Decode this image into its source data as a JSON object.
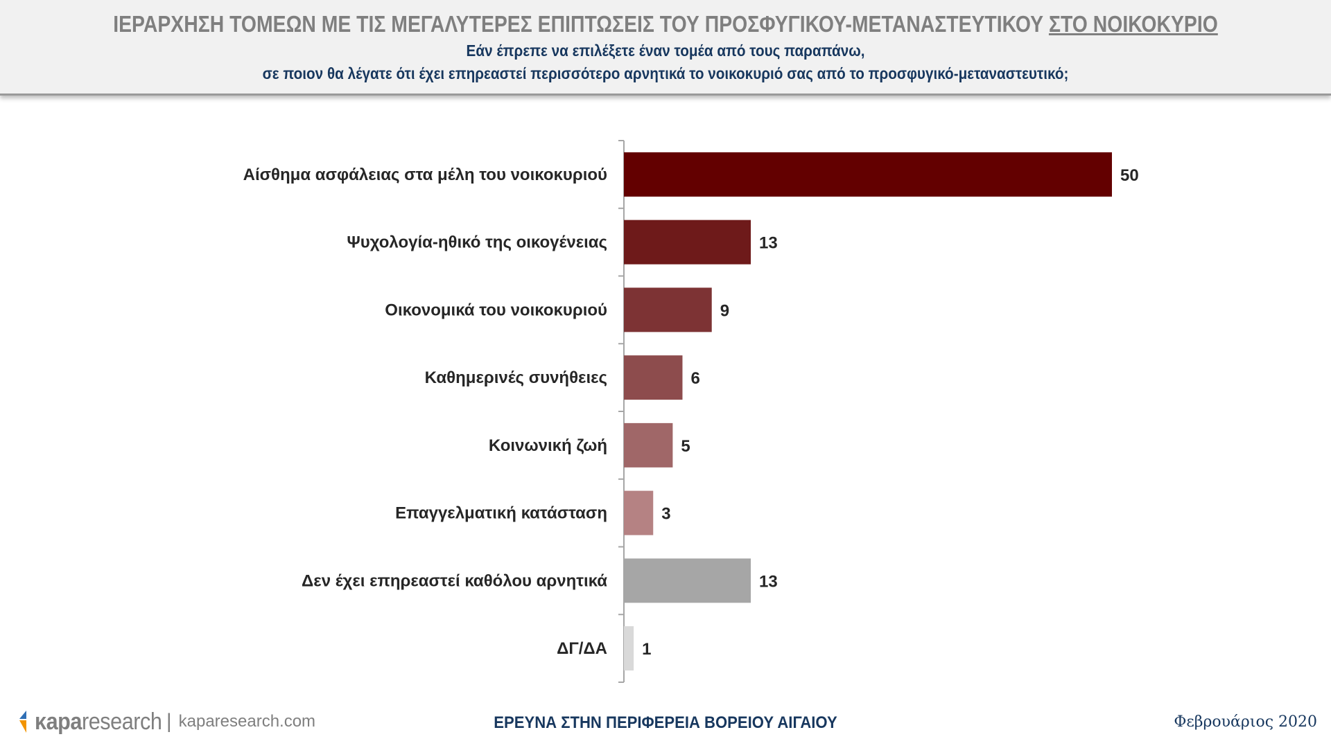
{
  "header": {
    "title_main": "ΙΕΡΑΡΧΗΣΗ ΤΟΜΕΩΝ ΜΕ ΤΙΣ ΜΕΓΑΛΥΤΕΡΕΣ ΕΠΙΠΤΩΣΕΙΣ ΤΟΥ ΠΡΟΣΦΥΓΙΚΟΥ-ΜΕΤΑΝΑΣΤΕΥΤΙΚΟΥ",
    "title_underlined": "ΣΤΟ ΝΟΙΚΟΚΥΡΙΟ",
    "subtitle_line1": "Εάν έπρεπε να επιλέξετε έναν τομέα από τους παραπάνω,",
    "subtitle_line2": "σε ποιον θα λέγατε ότι έχει επηρεαστεί περισσότερο αρνητικά το νοικοκυριό σας από το προσφυγικό-μεταναστευτικό;"
  },
  "chart_data": {
    "type": "bar",
    "orientation": "horizontal",
    "categories": [
      "Αίσθημα ασφάλειας στα μέλη του νοικοκυριού",
      "Ψυχολογία-ηθικό της οικογένειας",
      "Οικονομικά του νοικοκυριού",
      "Καθημερινές συνήθειες",
      "Κοινωνική ζωή",
      "Επαγγελματική κατάσταση",
      "Δεν έχει επηρεαστεί καθόλου αρνητικά",
      "ΔΓ/ΔΑ"
    ],
    "values": [
      50,
      13,
      9,
      6,
      5,
      3,
      13,
      1
    ],
    "colors": [
      "#630000",
      "#6e1a1a",
      "#7d3334",
      "#8d4c4d",
      "#a06768",
      "#b58283",
      "#a6a6a6",
      "#d9d9d9"
    ],
    "data_labels": [
      "50",
      "13",
      "9",
      "6",
      "5",
      "3",
      "13",
      "1"
    ],
    "xlim": [
      0,
      50
    ],
    "grid": false,
    "legend": "none"
  },
  "footer": {
    "logo_bold": "κapa",
    "logo_light": "research",
    "logo_separator": "|",
    "logo_url": "kaparesearch.com",
    "center_text": "ΕΡΕΥΝΑ ΣΤΗΝ ΠΕΡΙΦΕΡΕΙΑ ΒΟΡΕΙΟΥ ΑΙΓΑΙΟΥ",
    "date": "Φεβρουάριος 2020"
  },
  "colors": {
    "header_bg": "#f1f1f1",
    "title": "#7f7f7f",
    "subtitle": "#17375e",
    "logo_blue": "#2f6fb5",
    "logo_orange": "#f29400"
  }
}
